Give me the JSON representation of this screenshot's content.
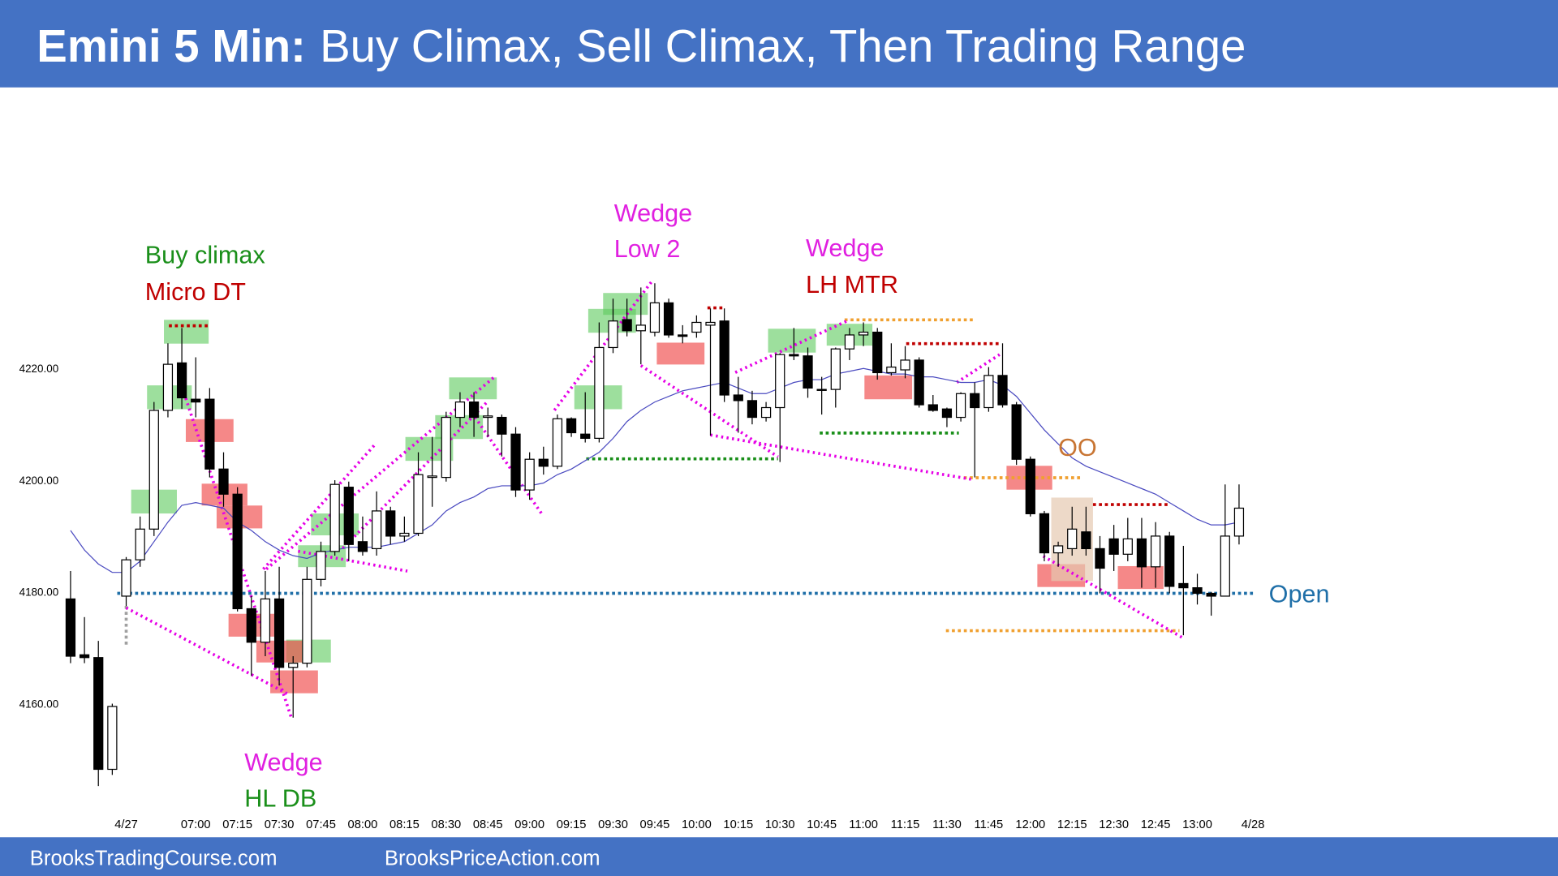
{
  "chart_data": {
    "type": "candlestick",
    "title": "Emini 5 Min:",
    "subtitle": "Buy Climax, Sell Climax, Then Trading Range",
    "up_color": "#ffffff",
    "down_color": "#000000",
    "open": [
      4178.75,
      4168.75,
      4168.25,
      4148.25,
      4179.25,
      4185.75,
      4191.25,
      4212.5,
      4221,
      4214.5,
      4214.5,
      4202,
      4197.5,
      4177,
      4171,
      4178.75,
      4166.5,
      4167.25,
      4182.25,
      4187.25,
      4198.75,
      4189,
      4187.75,
      4194.5,
      4190,
      4190.5,
      4200.5,
      4200.5,
      4211.25,
      4214,
      4211.25,
      4211.25,
      4208.25,
      4198.25,
      4203.75,
      4202.5,
      4211,
      4208.25,
      4207.5,
      4223.75,
      4228.75,
      4226.75,
      4226.5,
      4231.75,
      4226,
      4226.5,
      4227.75,
      4228.5,
      4215.25,
      4214.25,
      4211.25,
      4213,
      4222.5,
      4222.25,
      4216.25,
      4216.25,
      4223.5,
      4226,
      4226.5,
      4219.25,
      4219.75,
      4221.5,
      4213.5,
      4212.75,
      4211.25,
      4215.5,
      4213,
      4218.75,
      4213.5,
      4203.75,
      4194,
      4187,
      4187.75,
      4190.75,
      4187.75,
      4189.5,
      4186.75,
      4189.5,
      4184.5,
      4190,
      4181.5,
      4180.75,
      4179.75,
      4179.25,
      4190
    ],
    "high": [
      4183.75,
      4175.5,
      4171.25,
      4160,
      4186.25,
      4193.5,
      4214,
      4224.5,
      4227.25,
      4222,
      4216.5,
      4205,
      4198.75,
      4179.25,
      4183.75,
      4184.5,
      4168.5,
      4184.5,
      4189,
      4200,
      4199.75,
      4193.5,
      4198,
      4195.25,
      4193.5,
      4205,
      4207.75,
      4212.25,
      4215.75,
      4215.75,
      4213,
      4211.75,
      4209.5,
      4205,
      4206,
      4211.75,
      4211.25,
      4215.75,
      4228.25,
      4232.5,
      4232.5,
      4234.5,
      4235.25,
      4232.5,
      4227.75,
      4229.5,
      4230.75,
      4230.75,
      4218.5,
      4216,
      4214,
      4222.75,
      4227.25,
      4223.75,
      4218.5,
      4223.75,
      4227.25,
      4228.25,
      4227.25,
      4224.5,
      4224,
      4222,
      4215.25,
      4213,
      4215.75,
      4217.5,
      4220.25,
      4224.5,
      4214,
      4204.25,
      4194.5,
      4189,
      4195.25,
      4195.25,
      4190,
      4192,
      4193.25,
      4193.25,
      4192.5,
      4190.75,
      4188.25,
      4183.25,
      4180,
      4199.25,
      4199.25
    ],
    "low": [
      4167.25,
      4167.25,
      4145.25,
      4147.25,
      4177.5,
      4184.5,
      4190,
      4211.25,
      4212.75,
      4211.25,
      4200.5,
      4195.25,
      4176.5,
      4165,
      4168.5,
      4163.25,
      4157.5,
      4166.5,
      4181,
      4186.5,
      4185.5,
      4186.5,
      4186.5,
      4188.5,
      4189,
      4190,
      4195.25,
      4199.75,
      4209.5,
      4207.75,
      4207.75,
      4204.25,
      4197,
      4196.5,
      4201,
      4202,
      4207.75,
      4206.75,
      4206.75,
      4222.75,
      4225.75,
      4220.75,
      4225.75,
      4225.5,
      4224.5,
      4225.5,
      4208,
      4214,
      4208.5,
      4210,
      4210.5,
      4203.25,
      4221.5,
      4214.75,
      4211.75,
      4213,
      4221.5,
      4224,
      4218,
      4218.75,
      4218.25,
      4213,
      4212.25,
      4209.5,
      4210.5,
      4200.5,
      4212.25,
      4213,
      4202.75,
      4193.5,
      4185.5,
      4184.5,
      4186.5,
      4186.5,
      4179.75,
      4183.75,
      4185.5,
      4180.75,
      4180.75,
      4179.75,
      4172.25,
      4177.75,
      4175.75,
      4179.25,
      4188.5
    ],
    "close": [
      4168.5,
      4168.25,
      4148.25,
      4159.5,
      4185.75,
      4191.25,
      4212.5,
      4220.75,
      4214.75,
      4214,
      4202,
      4197.5,
      4177,
      4171,
      4178.75,
      4166.5,
      4167.25,
      4182.25,
      4187.25,
      4199.25,
      4188.5,
      4187.25,
      4194.5,
      4190,
      4190.5,
      4201,
      4200.75,
      4211.25,
      4214,
      4211.25,
      4211.5,
      4208.25,
      4198.25,
      4203.75,
      4202.5,
      4211,
      4208.5,
      4207.5,
      4223.75,
      4228.5,
      4226.75,
      4227.75,
      4231.75,
      4226,
      4225.75,
      4228.25,
      4228.25,
      4215.25,
      4214.25,
      4211.25,
      4213,
      4222.5,
      4222.25,
      4216.5,
      4216.25,
      4223.5,
      4226,
      4226.5,
      4219.25,
      4220.25,
      4221.5,
      4213.5,
      4212.5,
      4211.25,
      4215.5,
      4213,
      4218.75,
      4213.5,
      4203.75,
      4194,
      4187,
      4188.25,
      4191.25,
      4187.75,
      4184.25,
      4186.75,
      4189.5,
      4184.5,
      4190,
      4181,
      4180.75,
      4179.75,
      4179.25,
      4190,
      4195
    ],
    "ema": {
      "color": "#4a4ac0",
      "values": [
        4191,
        4187.5,
        4185,
        4183.5,
        4183.5,
        4185.5,
        4189,
        4192.5,
        4195.5,
        4196,
        4195.5,
        4195,
        4192.5,
        4191,
        4189,
        4187.5,
        4186.5,
        4186,
        4187,
        4187.5,
        4188,
        4188,
        4188,
        4188.5,
        4189,
        4190.5,
        4192,
        4194.5,
        4196,
        4197,
        4198.5,
        4199,
        4199,
        4199,
        4199.5,
        4201,
        4202,
        4203.5,
        4205,
        4207.5,
        4210.5,
        4212.5,
        4214,
        4215,
        4216,
        4216.5,
        4217,
        4217.5,
        4216.5,
        4215.5,
        4215.5,
        4216.5,
        4217.5,
        4218,
        4218,
        4219,
        4219.5,
        4220,
        4219.5,
        4219,
        4219,
        4218.5,
        4218.5,
        4218,
        4217.5,
        4217.5,
        4218,
        4217,
        4215,
        4212,
        4209,
        4206.5,
        4204,
        4202.5,
        4201.5,
        4200.5,
        4199.5,
        4198.5,
        4197.5,
        4196,
        4194.5,
        4193,
        4192,
        4192,
        4192.5
      ]
    },
    "open_level": {
      "value": 4179.75,
      "label": "Open",
      "color": "#1f6fa8"
    },
    "xlim": [
      -4,
      92
    ],
    "ylim": [
      4140,
      4250
    ],
    "xticks": [
      {
        "value": 4,
        "label": "4/27"
      },
      {
        "value": 9,
        "label": "07:00"
      },
      {
        "value": 12,
        "label": "07:15"
      },
      {
        "value": 15,
        "label": "07:30"
      },
      {
        "value": 18,
        "label": "07:45"
      },
      {
        "value": 21,
        "label": "08:00"
      },
      {
        "value": 24,
        "label": "08:15"
      },
      {
        "value": 27,
        "label": "08:30"
      },
      {
        "value": 30,
        "label": "08:45"
      },
      {
        "value": 33,
        "label": "09:00"
      },
      {
        "value": 36,
        "label": "09:15"
      },
      {
        "value": 39,
        "label": "09:30"
      },
      {
        "value": 42,
        "label": "09:45"
      },
      {
        "value": 45,
        "label": "10:00"
      },
      {
        "value": 48,
        "label": "10:15"
      },
      {
        "value": 51,
        "label": "10:30"
      },
      {
        "value": 54,
        "label": "10:45"
      },
      {
        "value": 57,
        "label": "11:00"
      },
      {
        "value": 60,
        "label": "11:15"
      },
      {
        "value": 63,
        "label": "11:30"
      },
      {
        "value": 66,
        "label": "11:45"
      },
      {
        "value": 69,
        "label": "12:00"
      },
      {
        "value": 72,
        "label": "12:15"
      },
      {
        "value": 75,
        "label": "12:30"
      },
      {
        "value": 78,
        "label": "12:45"
      },
      {
        "value": 81,
        "label": "13:00"
      },
      {
        "value": 85,
        "label": "4/28"
      }
    ],
    "yticks": [
      {
        "value": 4160,
        "label": "4160.00"
      },
      {
        "value": 4180,
        "label": "4180.00"
      },
      {
        "value": 4200,
        "label": "4200.00"
      },
      {
        "value": 4220,
        "label": "4220.00"
      }
    ],
    "annotations": [
      {
        "text": "Buy climax",
        "color": "#1a8f1a"
      },
      {
        "text": "Micro DT",
        "color": "#c00000"
      },
      {
        "text": "Wedge",
        "color": "#e020e0"
      },
      {
        "text": "Low 2",
        "color": "#e020e0"
      },
      {
        "text": "Wedge",
        "color": "#e020e0"
      },
      {
        "text": "LH MTR",
        "color": "#c00000"
      },
      {
        "text": "Wedge",
        "color": "#e020e0"
      },
      {
        "text": "HL DB",
        "color": "#1a8f1a"
      },
      {
        "text": "OO",
        "color": "#c87533"
      }
    ]
  },
  "footer": {
    "left": "BrooksTradingCourse.com",
    "right": "BrooksPriceAction.com"
  }
}
